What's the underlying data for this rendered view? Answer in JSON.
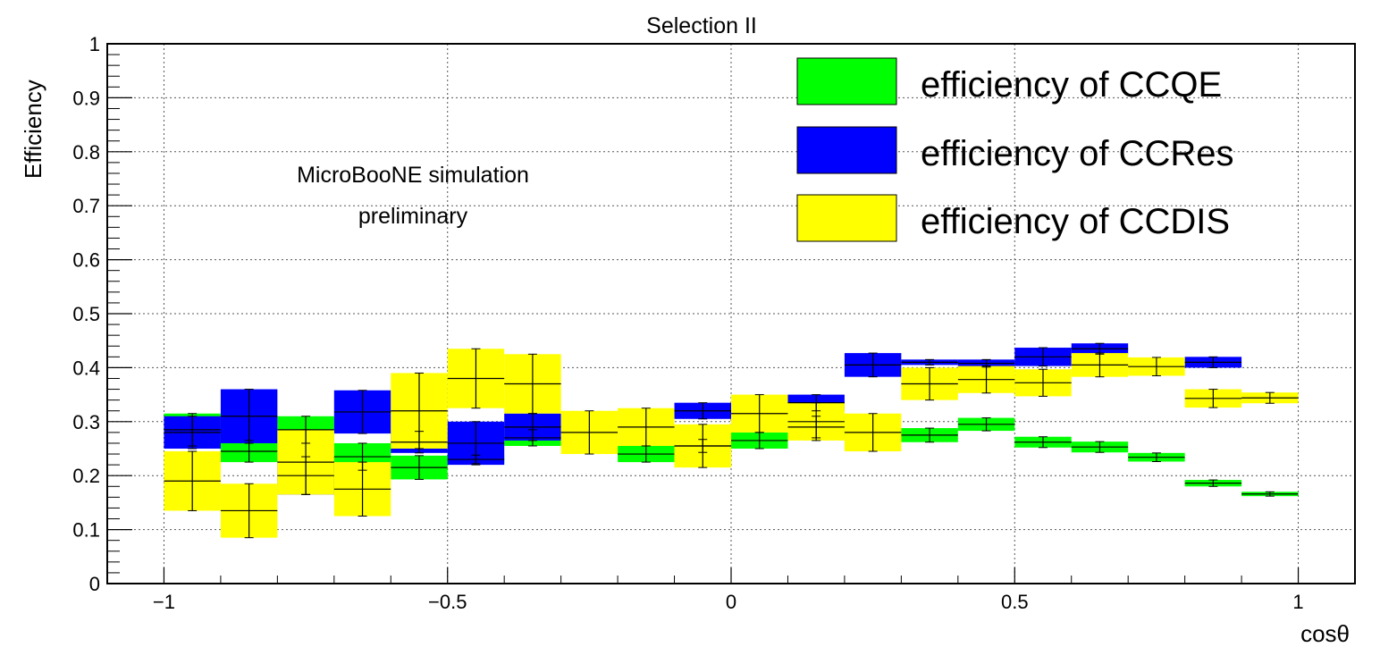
{
  "chart_data": {
    "type": "bar",
    "title": "Selection II",
    "xlabel": "cosθ",
    "ylabel": "Efficiency",
    "xlim": [
      -1.1,
      1.1
    ],
    "ylim": [
      0,
      1
    ],
    "grid": true,
    "x_ticks": [
      -1,
      -0.5,
      0,
      0.5,
      1
    ],
    "x_tick_labels": [
      "−1",
      "−0.5",
      "0",
      "0.5",
      "1"
    ],
    "y_ticks": [
      0,
      0.1,
      0.2,
      0.3,
      0.4,
      0.5,
      0.6,
      0.7,
      0.8,
      0.9,
      1
    ],
    "y_tick_labels": [
      "0",
      "0.1",
      "0.2",
      "0.3",
      "0.4",
      "0.5",
      "0.6",
      "0.7",
      "0.8",
      "0.9",
      "1"
    ],
    "bin_edges": [
      -1,
      -0.9,
      -0.8,
      -0.7,
      -0.6,
      -0.5,
      -0.4,
      -0.3,
      -0.2,
      -0.1,
      0,
      0.1,
      0.2,
      0.3,
      0.4,
      0.5,
      0.6,
      0.7,
      0.8,
      0.9,
      1
    ],
    "legend_position": "top-right",
    "annotations": [
      "MicroBooNE simulation",
      "preliminary"
    ],
    "series": [
      {
        "name": "efficiency of CCQE",
        "color": "#00ff00",
        "values": [
          0.285,
          0.245,
          0.285,
          0.235,
          0.215,
          0.23,
          0.27,
          null,
          0.24,
          0.255,
          0.265,
          0.29,
          null,
          0.275,
          0.295,
          0.262,
          0.253,
          0.234,
          0.186,
          0.166
        ],
        "errors": [
          0.03,
          0.02,
          0.025,
          0.025,
          0.022,
          0.008,
          0.015,
          null,
          0.015,
          0.012,
          0.015,
          0.02,
          null,
          0.013,
          0.012,
          0.01,
          0.01,
          0.008,
          0.006,
          0.004
        ]
      },
      {
        "name": "efficiency of CCRes",
        "color": "#0000ff",
        "values": [
          0.28,
          0.31,
          0.2,
          0.318,
          0.262,
          0.26,
          0.29,
          null,
          null,
          0.32,
          null,
          0.335,
          0.405,
          0.41,
          0.408,
          0.42,
          0.435,
          null,
          0.41,
          null
        ],
        "errors": [
          0.03,
          0.05,
          0.035,
          0.04,
          0.02,
          0.04,
          0.025,
          null,
          null,
          0.015,
          null,
          0.015,
          0.022,
          0.005,
          0.007,
          0.017,
          0.01,
          null,
          0.01,
          null
        ]
      },
      {
        "name": "efficiency of CCDIS",
        "color": "#ffff00",
        "values": [
          0.19,
          0.135,
          0.225,
          0.175,
          0.32,
          0.38,
          0.37,
          0.28,
          0.29,
          0.255,
          0.315,
          0.3,
          0.28,
          0.37,
          0.378,
          0.372,
          0.405,
          0.402,
          0.343,
          0.344
        ],
        "errors": [
          0.055,
          0.05,
          0.06,
          0.05,
          0.07,
          0.055,
          0.055,
          0.04,
          0.035,
          0.04,
          0.035,
          0.035,
          0.035,
          0.03,
          0.025,
          0.025,
          0.022,
          0.017,
          0.017,
          0.01
        ]
      }
    ]
  }
}
